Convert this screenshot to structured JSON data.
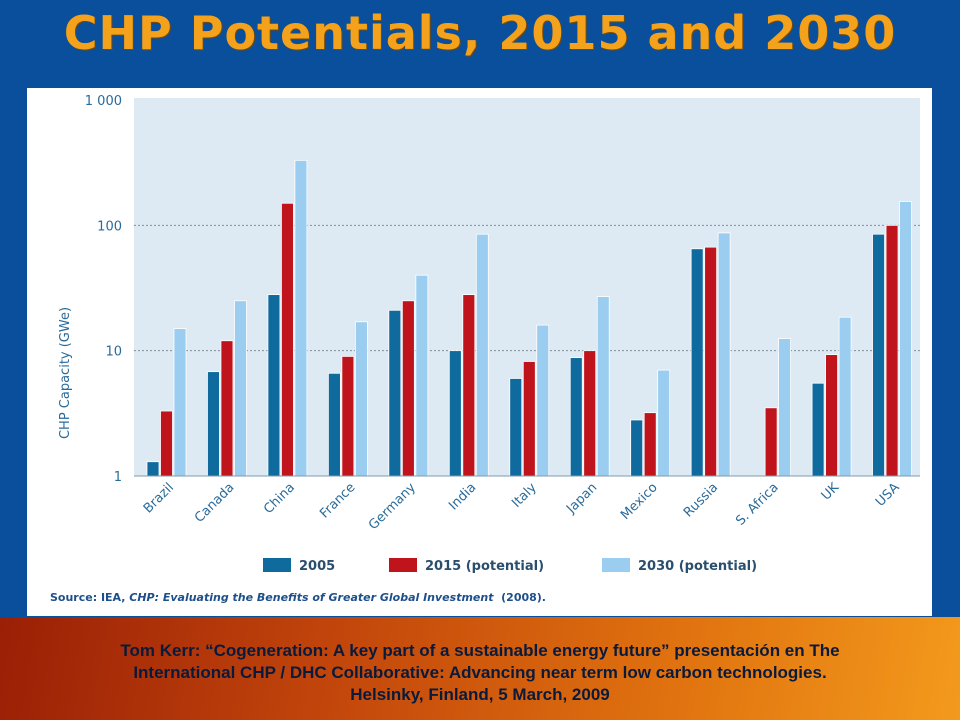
{
  "slide": {
    "title": "CHP Potentials, 2015 and 2030"
  },
  "source": {
    "prefix": "Source:  IEA, ",
    "publication": "CHP:  Evaluating the Benefits of Greater Global Investment",
    "year": "(2008)."
  },
  "footer": {
    "line1": "Tom Kerr: “Cogeneration: A key part of a sustainable energy future” presentación en The",
    "line2": "International CHP / DHC Collaborative: Advancing near term low carbon technologies.",
    "line3": "Helsinky, Finland, 5 March, 2009"
  },
  "chart_data": {
    "type": "bar",
    "ylabel": "CHP Capacity (GWe)",
    "yscale": "log",
    "ylim": [
      1,
      1000
    ],
    "yticks": [
      {
        "value": 1,
        "label": "1"
      },
      {
        "value": 10,
        "label": "10"
      },
      {
        "value": 100,
        "label": "100"
      },
      {
        "value": 1000,
        "label": "1 000"
      }
    ],
    "grid": "dotted horizontal at 10 and 100",
    "legend_position": "bottom",
    "categories": [
      "Brazil",
      "Canada",
      "China",
      "France",
      "Germany",
      "India",
      "Italy",
      "Japan",
      "Mexico",
      "Russia",
      "S. Africa",
      "UK",
      "USA"
    ],
    "series": [
      {
        "name": "2005",
        "color": "#0f6a9e",
        "values": [
          1.3,
          6.8,
          28,
          6.6,
          21,
          10,
          6,
          8.8,
          2.8,
          65,
          null,
          5.5,
          85
        ]
      },
      {
        "name": "2015 (potential)",
        "color": "#c0141c",
        "values": [
          3.3,
          12,
          150,
          9,
          25,
          28,
          8.2,
          10,
          3.2,
          67,
          3.5,
          9.3,
          100
        ]
      },
      {
        "name": "2030 (potential)",
        "color": "#9acdf0",
        "values": [
          15,
          25,
          330,
          17,
          40,
          85,
          16,
          27,
          7,
          87,
          12.5,
          18.5,
          155
        ]
      }
    ]
  }
}
